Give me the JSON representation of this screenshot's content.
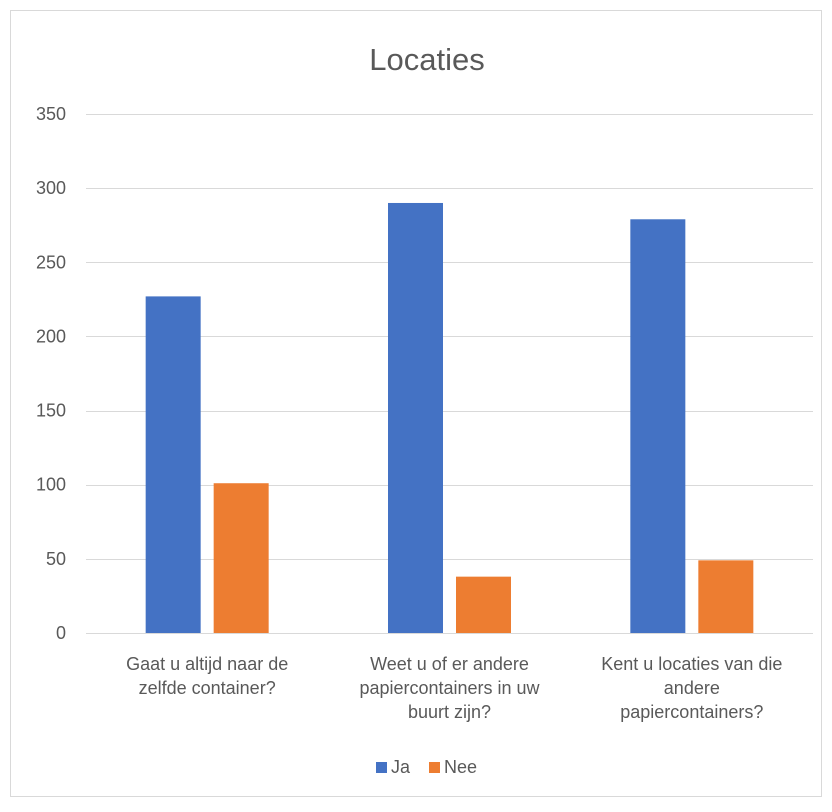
{
  "chart_data": {
    "type": "bar",
    "title": "Locaties",
    "xlabel": "",
    "ylabel": "",
    "ylim": [
      0,
      350
    ],
    "yticks": [
      0,
      50,
      100,
      150,
      200,
      250,
      300,
      350
    ],
    "grid": true,
    "legend_position": "bottom",
    "categories": [
      [
        "Gaat u altijd naar de",
        "zelfde container?"
      ],
      [
        "Weet u of er andere",
        "papiercontainers in uw",
        "buurt zijn?"
      ],
      [
        "Kent u locaties van die",
        "andere",
        "papiercontainers?"
      ]
    ],
    "series": [
      {
        "name": "Ja",
        "values": [
          227,
          290,
          279
        ],
        "color": "#4472C4"
      },
      {
        "name": "Nee",
        "values": [
          101,
          38,
          49
        ],
        "color": "#ED7D31"
      }
    ]
  }
}
